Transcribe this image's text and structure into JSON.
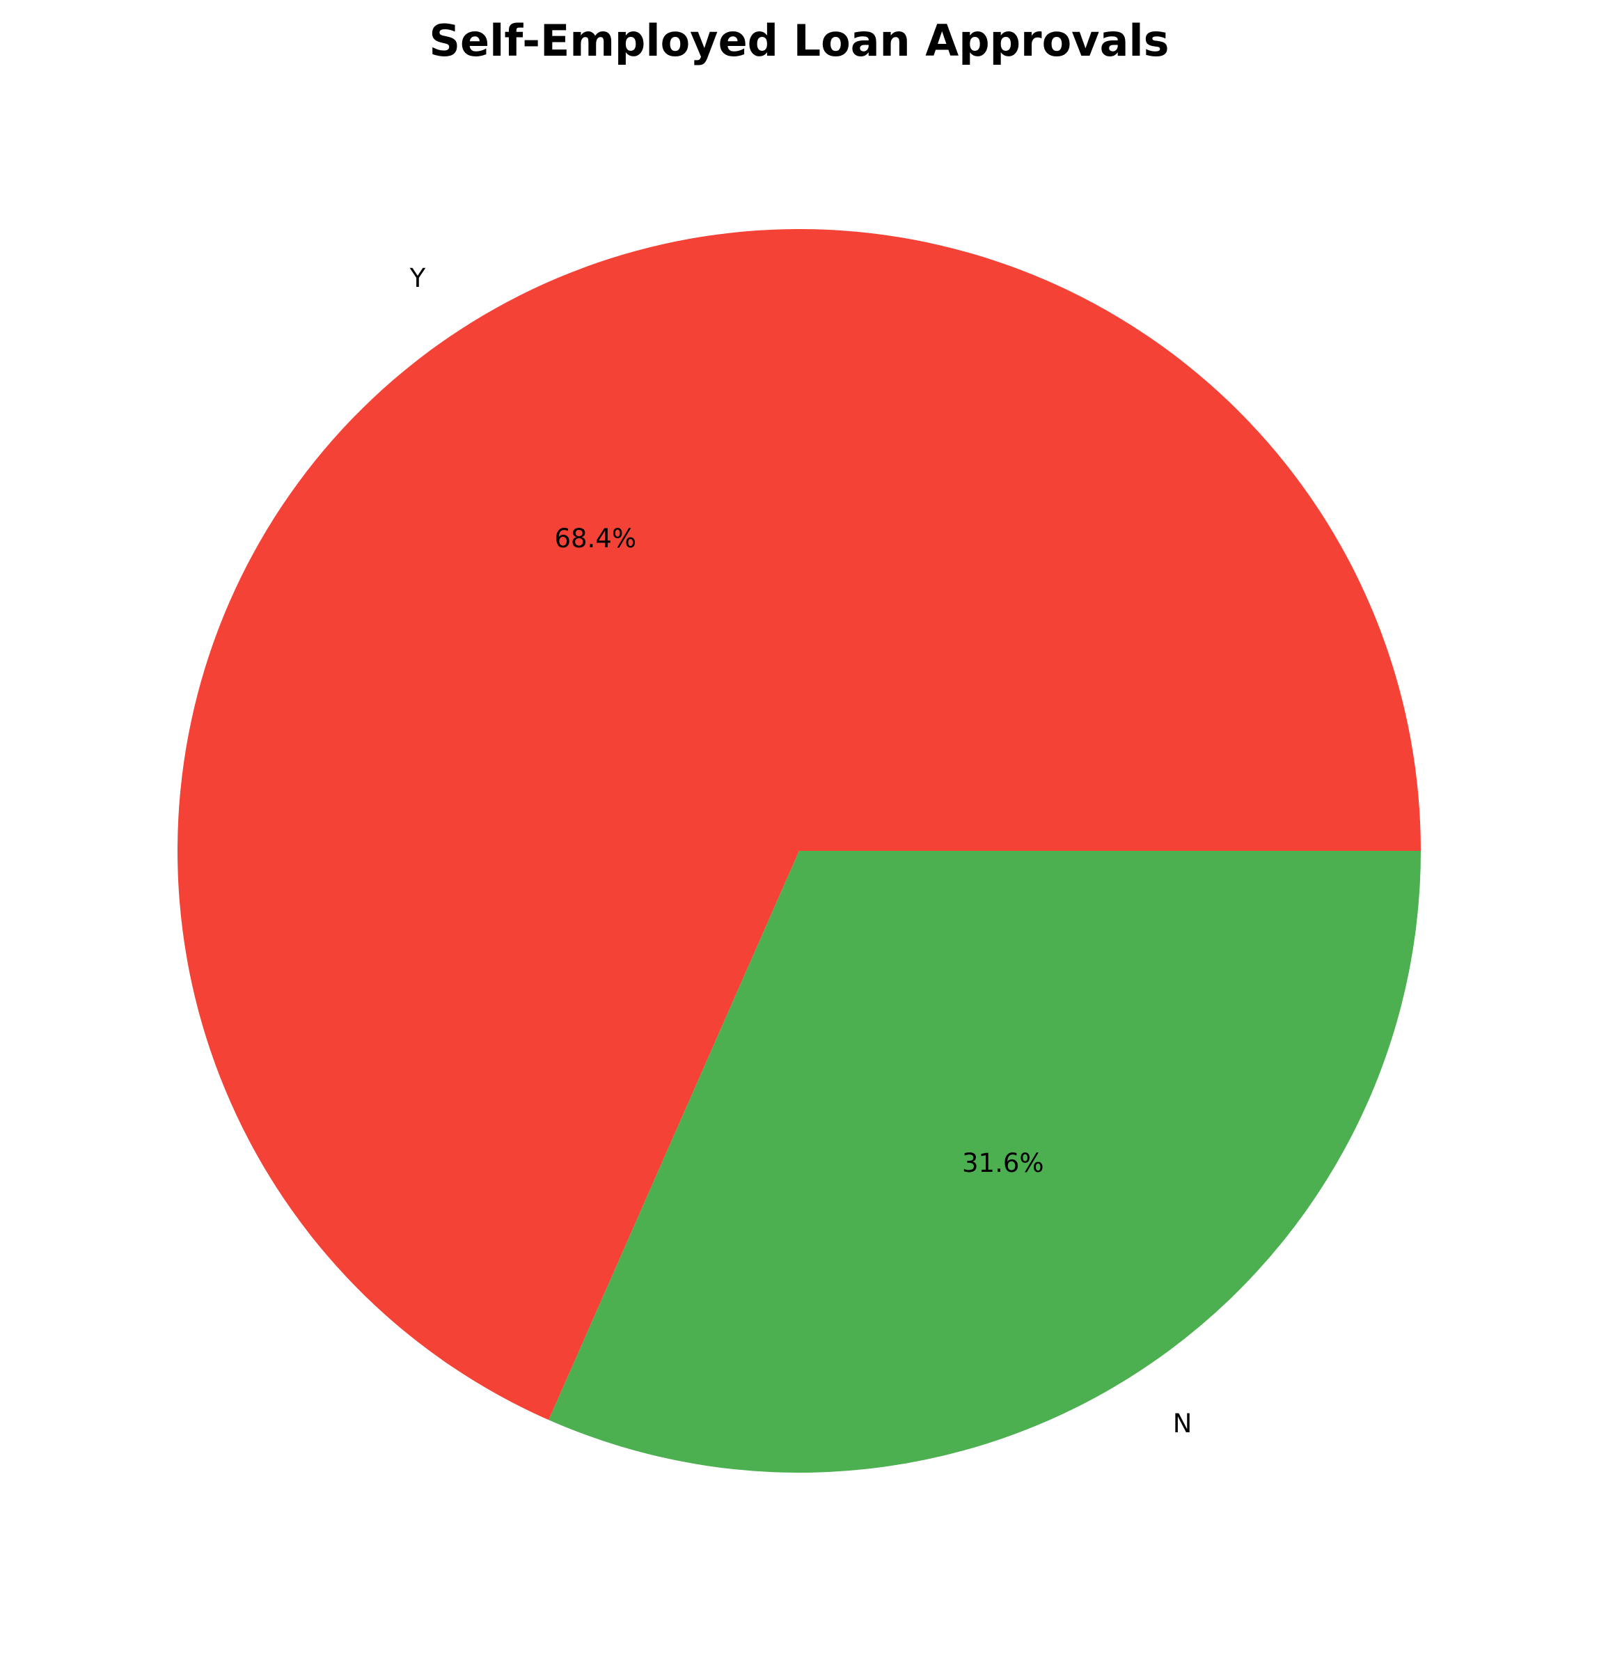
{
  "chart_data": {
    "type": "pie",
    "title": "Self-Employed Loan Approvals",
    "slices": [
      {
        "label": "Y",
        "value": 68.4,
        "pct_label": "68.4%",
        "color": "#f44336"
      },
      {
        "label": "N",
        "value": 31.6,
        "pct_label": "31.6%",
        "color": "#4caf50"
      }
    ],
    "start_angle_deg": 0,
    "direction": "counterclockwise",
    "legend": "none"
  }
}
